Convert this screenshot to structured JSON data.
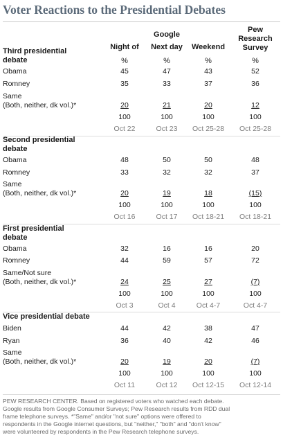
{
  "title": "Voter Reactions to the Presidential Debates",
  "columns": [
    {
      "line1": "",
      "line2": "",
      "line3": "Night of",
      "pct": "%"
    },
    {
      "line1": "",
      "line2": "Google",
      "line3": "Next day",
      "pct": "%"
    },
    {
      "line1": "",
      "line2": "",
      "line3": "Weekend",
      "pct": "%"
    },
    {
      "line1": "Pew",
      "line2": "Research",
      "line3": "Survey",
      "pct": "%"
    }
  ],
  "sections": [
    {
      "title_line1": "Third presidential",
      "title_line2": "debate",
      "rows": [
        {
          "label1": "Obama",
          "label2": "",
          "values": [
            "45",
            "47",
            "43",
            "52"
          ]
        },
        {
          "label1": "Romney",
          "label2": "",
          "values": [
            "35",
            "33",
            "37",
            "36"
          ]
        },
        {
          "label1": "Same",
          "label2": "(Both, neither, dk vol.)*",
          "values": [
            "20",
            "21",
            "20",
            "12"
          ]
        }
      ],
      "totals": [
        "100",
        "100",
        "100",
        "100"
      ],
      "dates": [
        "Oct 22",
        "Oct 23",
        "Oct 25-28",
        "Oct 25-28"
      ]
    },
    {
      "title_line1": "Second presidential",
      "title_line2": "debate",
      "rows": [
        {
          "label1": "Obama",
          "label2": "",
          "values": [
            "48",
            "50",
            "50",
            "48"
          ]
        },
        {
          "label1": "Romney",
          "label2": "",
          "values": [
            "33",
            "32",
            "32",
            "37"
          ]
        },
        {
          "label1": "Same",
          "label2": "(Both, neither, dk vol.)*",
          "values": [
            "20",
            "19",
            "18",
            "(15)"
          ]
        }
      ],
      "totals": [
        "100",
        "100",
        "100",
        "100"
      ],
      "dates": [
        "Oct 16",
        "Oct 17",
        "Oct 18-21",
        "Oct 18-21"
      ]
    },
    {
      "title_line1": "First presidential",
      "title_line2": "debate",
      "rows": [
        {
          "label1": "Obama",
          "label2": "",
          "values": [
            "32",
            "16",
            "16",
            "20"
          ]
        },
        {
          "label1": "Romney",
          "label2": "",
          "values": [
            "44",
            "59",
            "57",
            "72"
          ]
        },
        {
          "label1": "Same/Not sure",
          "label2": "(Both, neither, dk vol.)*",
          "values": [
            "24",
            "25",
            "27",
            "(7)"
          ]
        }
      ],
      "totals": [
        "100",
        "100",
        "100",
        "100"
      ],
      "dates": [
        "Oct 3",
        "Oct 4",
        "Oct 4-7",
        "Oct 4-7"
      ]
    },
    {
      "title_line1": "Vice presidential debate",
      "title_line2": "",
      "rows": [
        {
          "label1": "Biden",
          "label2": "",
          "values": [
            "44",
            "42",
            "38",
            "47"
          ]
        },
        {
          "label1": "Ryan",
          "label2": "",
          "values": [
            "36",
            "40",
            "42",
            "46"
          ]
        },
        {
          "label1": "Same",
          "label2": "(Both, neither, dk vol.)*",
          "values": [
            "20",
            "19",
            "20",
            "(7)"
          ]
        }
      ],
      "totals": [
        "100",
        "100",
        "100",
        "100"
      ],
      "dates": [
        "Oct 11",
        "Oct 12",
        "Oct 12-15",
        "Oct 12-14"
      ]
    }
  ],
  "note": {
    "line1": "PEW RESEARCH CENTER. Based on registered voters who watched each debate.",
    "line2": "Google results from Google Consumer Surveys;  Pew Research results from RDD dual",
    "line3": "frame telephone surveys. *\"Same\" and/or \"not sure\" options were offered to",
    "line4": "respondents in the Google internet questions, but \"neither,\" \"both\" and \"don't know\"",
    "line5": "were volunteered by respondents in the Pew Research telephone surveys."
  }
}
